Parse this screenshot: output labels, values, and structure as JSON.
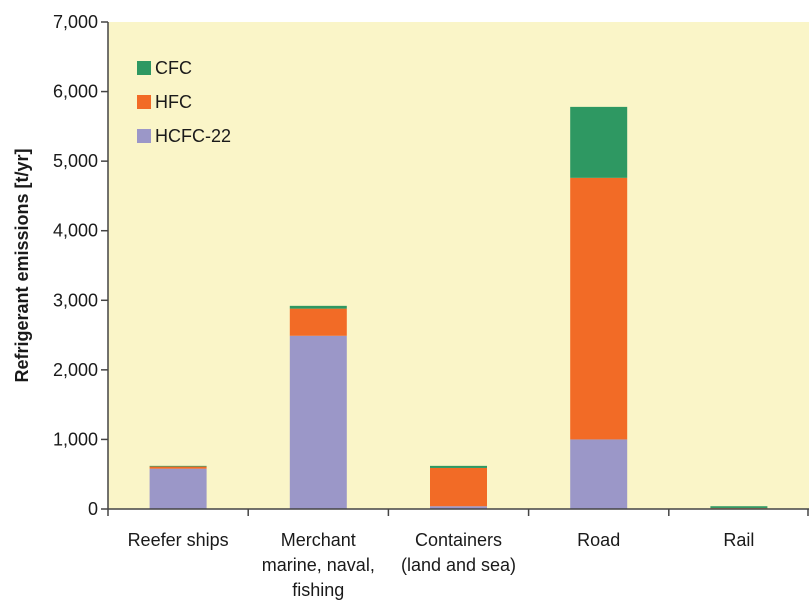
{
  "chart_data": {
    "type": "bar",
    "stacked": true,
    "categories": [
      [
        "Reefer ships"
      ],
      [
        "Merchant",
        "marine, naval,",
        "fishing"
      ],
      [
        "Containers",
        "(land and sea)"
      ],
      [
        "Road"
      ],
      [
        "Rail"
      ]
    ],
    "series": [
      {
        "name": "HCFC-22",
        "color": "#9b97c8",
        "values": [
          580,
          2490,
          40,
          1000,
          10
        ]
      },
      {
        "name": "HFC",
        "color": "#f26b26",
        "values": [
          30,
          390,
          550,
          3760,
          5
        ]
      },
      {
        "name": "CFC",
        "color": "#2e9862",
        "values": [
          10,
          40,
          30,
          1020,
          25
        ]
      }
    ],
    "legend": {
      "placement": "top-left",
      "order": [
        "CFC",
        "HFC",
        "HCFC-22"
      ]
    },
    "title": "",
    "xlabel": "",
    "ylabel": "Refrigerant emissions [t/yr]",
    "ylim": [
      0,
      7000
    ],
    "yticks": [
      0,
      1000,
      2000,
      3000,
      4000,
      5000,
      6000,
      7000
    ],
    "ytick_labels": [
      "0",
      "1,000",
      "2,000",
      "3,000",
      "4,000",
      "5,000",
      "6,000",
      "7,000"
    ],
    "plot_background": "#faf5c8",
    "grid": false
  }
}
